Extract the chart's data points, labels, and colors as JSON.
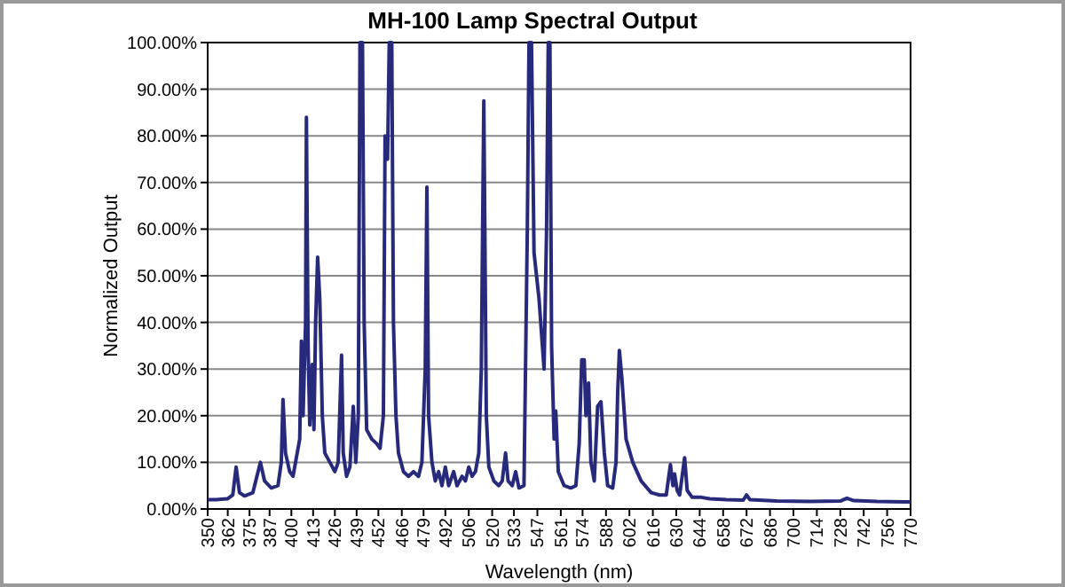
{
  "chart_data": {
    "type": "line",
    "title": "MH-100 Lamp Spectral Output",
    "xlabel": "Wavelength (nm)",
    "ylabel": "Normalized Output",
    "xlim": [
      350,
      770
    ],
    "xticks": [
      350,
      362,
      375,
      387,
      400,
      413,
      426,
      439,
      452,
      466,
      479,
      492,
      506,
      520,
      533,
      547,
      561,
      574,
      588,
      602,
      616,
      630,
      644,
      658,
      672,
      686,
      700,
      714,
      728,
      742,
      756,
      770
    ],
    "ylim": [
      0,
      100
    ],
    "yticks": [
      {
        "value": 0,
        "label": "0.00%"
      },
      {
        "value": 10,
        "label": "10.00%"
      },
      {
        "value": 20,
        "label": "20.00%"
      },
      {
        "value": 30,
        "label": "30.00%"
      },
      {
        "value": 40,
        "label": "40.00%"
      },
      {
        "value": 50,
        "label": "50.00%"
      },
      {
        "value": 60,
        "label": "60.00%"
      },
      {
        "value": 70,
        "label": "70.00%"
      },
      {
        "value": 80,
        "label": "80.00%"
      },
      {
        "value": 90,
        "label": "90.00%"
      },
      {
        "value": 100,
        "label": "100.00%"
      }
    ],
    "grid": "y",
    "marker": "none",
    "line_style": "solid",
    "x": [
      350,
      355,
      362,
      365,
      367,
      369,
      372,
      377,
      381.5,
      384,
      388,
      392,
      394,
      395,
      396.5,
      399,
      401,
      403,
      405,
      406,
      407,
      408.5,
      409,
      410,
      411,
      412.5,
      413.5,
      414.5,
      415.7,
      417,
      418.5,
      420,
      423,
      426,
      428,
      430,
      431,
      433,
      435,
      437,
      438.5,
      440,
      441,
      442.5,
      443.5,
      445,
      448,
      451,
      453,
      455,
      456,
      457.5,
      458.5,
      460,
      461,
      462.5,
      464,
      467,
      470,
      473,
      476,
      478,
      480,
      481,
      482,
      484,
      486,
      488,
      490,
      492,
      494,
      497,
      499,
      502,
      504,
      506,
      508,
      510,
      512,
      513.5,
      515,
      516.5,
      518,
      521,
      524,
      526,
      528,
      529.5,
      532,
      534,
      536,
      539,
      541,
      542,
      543.5,
      545,
      548,
      551,
      552.5,
      553.5,
      554.5,
      555.5,
      557,
      558,
      559.5,
      563,
      567,
      570,
      572,
      573.5,
      575,
      576,
      577.6,
      579,
      581,
      583,
      585,
      587,
      589,
      592,
      594,
      595,
      596,
      597.5,
      600,
      604,
      609,
      615,
      620,
      624,
      626.5,
      628,
      629,
      630.5,
      632,
      633.5,
      635,
      636.5,
      639.5,
      645,
      650,
      660,
      670,
      672,
      674,
      690,
      710,
      728,
      732,
      736,
      750,
      770
    ],
    "series": [
      {
        "color": "#27297a",
        "values": [
          2,
          2,
          2.2,
          3,
          9,
          3.5,
          2.8,
          3.5,
          10,
          6,
          4.5,
          5,
          10,
          23.5,
          12,
          8,
          7,
          11,
          15,
          36,
          20,
          40,
          84,
          35,
          18,
          31,
          17,
          40,
          54,
          45,
          20,
          12,
          10,
          8,
          10,
          33,
          12,
          7,
          9,
          22,
          10,
          20,
          100,
          100,
          40,
          17,
          15,
          14,
          13,
          20,
          80,
          75,
          100,
          100,
          40,
          20,
          12,
          8,
          7,
          8,
          7,
          10,
          30,
          69,
          20,
          10,
          6,
          8,
          5,
          9,
          5,
          8,
          5,
          7,
          6,
          9,
          7,
          8,
          12,
          30,
          87.5,
          20,
          9,
          6,
          5,
          6,
          12,
          6,
          5,
          8,
          4.5,
          5,
          60,
          100,
          100,
          55,
          45,
          30,
          60,
          100,
          100,
          35,
          15,
          21,
          8,
          5,
          4.5,
          5,
          14,
          32,
          32,
          20,
          27,
          10,
          6,
          22,
          23,
          12,
          5,
          4.5,
          10,
          25,
          34,
          28,
          15,
          10,
          6,
          3.5,
          3,
          3,
          9.5,
          5,
          7.5,
          4,
          3,
          7,
          11,
          4,
          2.5,
          2.5,
          2.2,
          2,
          1.9,
          3,
          2,
          1.7,
          1.6,
          1.7,
          2.3,
          1.8,
          1.6,
          1.5
        ]
      }
    ]
  }
}
